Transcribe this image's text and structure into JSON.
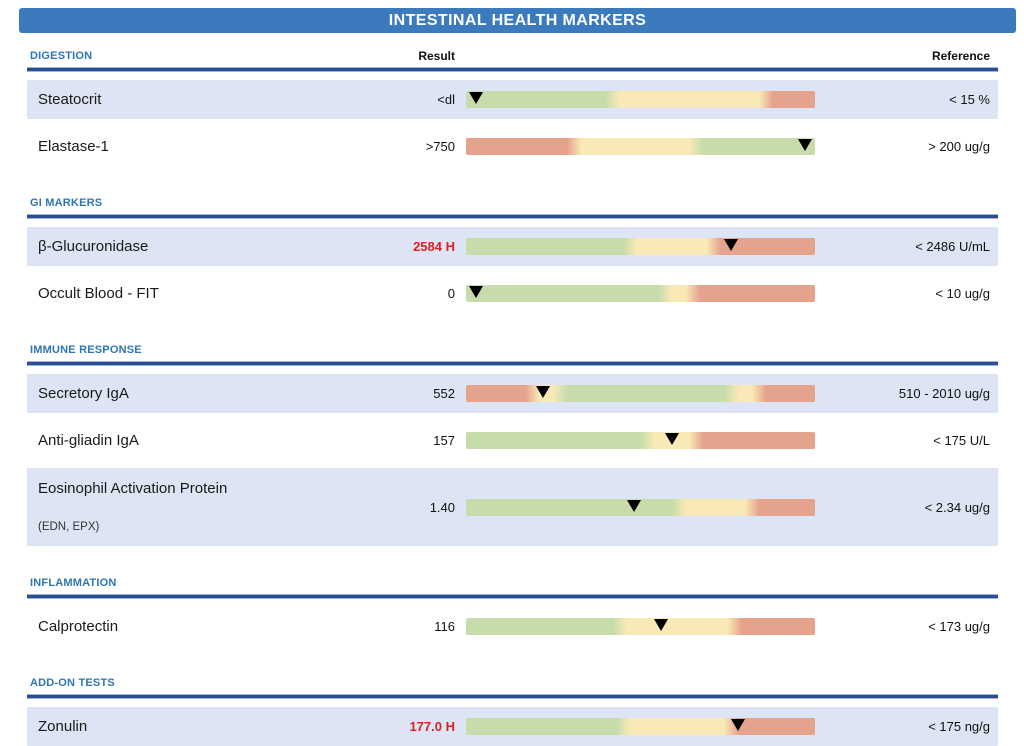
{
  "title": "INTESTINAL HEALTH MARKERS",
  "columns": {
    "result": "Result",
    "reference": "Reference"
  },
  "palette": {
    "green": "#c7dcab",
    "yellow": "#f8e9b7",
    "red": "#e5a28c",
    "row_highlight": "#dde4f3",
    "header_bar": "#3a7abd",
    "section_label": "#2e75b6",
    "abnormal_result": "#e31e24",
    "marker": "#000000"
  },
  "sections": [
    {
      "label": "DIGESTION",
      "rows": [
        {
          "name": "Steatocrit",
          "result": "<dl",
          "abnormal": false,
          "reference": "< 15 %",
          "marker_pct": 3,
          "segments": [
            [
              "green",
              0,
              42
            ],
            [
              "yellow",
              42,
              86
            ],
            [
              "red",
              86,
              100
            ]
          ]
        },
        {
          "name": "Elastase-1",
          "result": ">750",
          "abnormal": false,
          "reference": "> 200 ug/g",
          "marker_pct": 97,
          "segments": [
            [
              "red",
              0,
              31
            ],
            [
              "yellow",
              31,
              66
            ],
            [
              "green",
              66,
              100
            ]
          ]
        }
      ]
    },
    {
      "label": "GI MARKERS",
      "rows": [
        {
          "name": "β-Glucuronidase",
          "result": "2584 H",
          "abnormal": true,
          "reference": "< 2486 U/mL",
          "marker_pct": 76,
          "segments": [
            [
              "green",
              0,
              47
            ],
            [
              "yellow",
              47,
              71
            ],
            [
              "red",
              71,
              100
            ]
          ]
        },
        {
          "name": "Occult Blood - FIT",
          "result": "0",
          "abnormal": false,
          "reference": "< 10 ug/g",
          "marker_pct": 3,
          "segments": [
            [
              "green",
              0,
              57
            ],
            [
              "yellow",
              57,
              65
            ],
            [
              "red",
              65,
              100
            ]
          ]
        }
      ]
    },
    {
      "label": "IMMUNE RESPONSE",
      "rows": [
        {
          "name": "Secretory IgA",
          "result": "552",
          "abnormal": false,
          "reference": "510 - 2010 ug/g",
          "marker_pct": 22,
          "segments": [
            [
              "red",
              0,
              19
            ],
            [
              "yellow",
              19,
              27
            ],
            [
              "green",
              27,
              76
            ],
            [
              "yellow",
              76,
              84
            ],
            [
              "red",
              84,
              100
            ]
          ]
        },
        {
          "name": "Anti-gliadin IgA",
          "result": "157",
          "abnormal": false,
          "reference": "< 175 U/L",
          "marker_pct": 59,
          "segments": [
            [
              "green",
              0,
              52
            ],
            [
              "yellow",
              52,
              66
            ],
            [
              "red",
              66,
              100
            ]
          ]
        },
        {
          "name": "Eosinophil Activation Protein",
          "name_sub": "(EDN, EPX)",
          "result": "1.40",
          "abnormal": false,
          "reference": "< 2.34 ug/g",
          "marker_pct": 48,
          "segments": [
            [
              "green",
              0,
              61
            ],
            [
              "yellow",
              61,
              82
            ],
            [
              "red",
              82,
              100
            ]
          ]
        }
      ]
    },
    {
      "label": "INFLAMMATION",
      "rows": [
        {
          "name": "Calprotectin",
          "result": "116",
          "abnormal": false,
          "reference": "< 173 ug/g",
          "marker_pct": 56,
          "segments": [
            [
              "green",
              0,
              44
            ],
            [
              "yellow",
              44,
              77
            ],
            [
              "red",
              77,
              100
            ]
          ]
        }
      ]
    },
    {
      "label": "ADD-ON TESTS",
      "rows": [
        {
          "name": "Zonulin",
          "result": "177.0 H",
          "abnormal": true,
          "reference": "< 175 ng/g",
          "marker_pct": 78,
          "segments": [
            [
              "green",
              0,
              45
            ],
            [
              "yellow",
              45,
              76
            ],
            [
              "red",
              76,
              100
            ]
          ]
        }
      ]
    }
  ]
}
